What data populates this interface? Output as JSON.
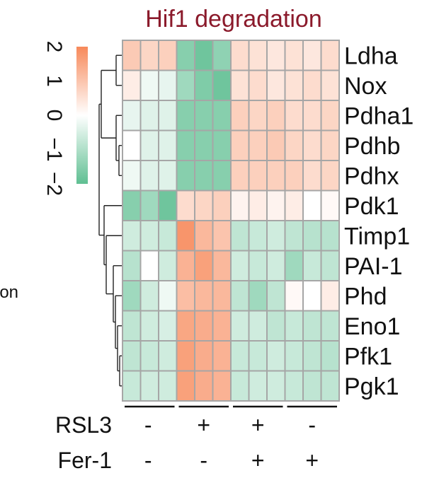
{
  "chart_data": {
    "type": "heatmap",
    "title": "Hif1 degradation",
    "rows": [
      "Ldha",
      "Nox",
      "Pdha1",
      "Pdhb",
      "Pdhx",
      "Pdk1",
      "Timp1",
      "PAI-1",
      "Phd",
      "Eno1",
      "Pfk1",
      "Pgk1"
    ],
    "groups": [
      {
        "label": "RSL3",
        "values": [
          "-",
          "+",
          "+",
          "-"
        ]
      },
      {
        "label": "Fer-1",
        "values": [
          "-",
          "-",
          "+",
          "+"
        ]
      }
    ],
    "replicates_per_group": 3,
    "values": [
      [
        0.9,
        0.7,
        0.8,
        -1.5,
        -1.8,
        -1.4,
        0.6,
        0.5,
        0.4,
        0.5,
        0.4,
        0.6
      ],
      [
        0.3,
        -0.2,
        -0.3,
        -1.2,
        -1.6,
        -1.8,
        0.5,
        0.6,
        0.4,
        0.5,
        0.6,
        0.5
      ],
      [
        -0.3,
        -0.4,
        -0.4,
        -1.5,
        -1.5,
        -1.5,
        0.8,
        0.7,
        0.8,
        0.6,
        0.6,
        0.7
      ],
      [
        0.0,
        -0.4,
        -0.4,
        -1.5,
        -1.5,
        -1.5,
        0.8,
        0.8,
        0.9,
        0.7,
        0.6,
        0.7
      ],
      [
        -0.2,
        -0.4,
        -0.4,
        -1.5,
        -1.5,
        -1.5,
        0.8,
        0.8,
        0.8,
        0.8,
        0.6,
        0.7
      ],
      [
        -1.5,
        -1.2,
        -1.8,
        0.6,
        0.7,
        0.8,
        0.2,
        0.3,
        0.2,
        0.3,
        0.0,
        0.1
      ],
      [
        -0.6,
        -0.6,
        -0.7,
        1.8,
        1.2,
        1.0,
        -0.8,
        -0.7,
        -0.6,
        -0.8,
        -0.9,
        -0.9
      ],
      [
        -0.9,
        0.0,
        -0.6,
        1.3,
        1.6,
        1.2,
        -0.6,
        -0.7,
        -0.6,
        -1.2,
        -0.7,
        -0.8
      ],
      [
        -1.2,
        -0.6,
        -0.2,
        1.1,
        1.2,
        1.2,
        -0.8,
        -1.2,
        -0.8,
        0.1,
        0.0,
        0.3
      ],
      [
        -0.8,
        -0.6,
        -0.5,
        1.5,
        1.4,
        1.3,
        -0.6,
        -0.6,
        -0.8,
        -0.7,
        -0.8,
        -0.8
      ],
      [
        -0.8,
        -0.7,
        -0.6,
        1.6,
        1.4,
        1.3,
        -0.7,
        -0.7,
        -0.6,
        -0.7,
        -0.8,
        -0.9
      ],
      [
        -0.7,
        -0.6,
        -0.6,
        1.6,
        1.4,
        1.3,
        -0.7,
        -0.6,
        -0.6,
        -0.7,
        -0.8,
        -0.8
      ]
    ],
    "color_scale": {
      "min": -2,
      "max": 2,
      "low_color": "#5fbf92",
      "mid_color": "#ffffff",
      "high_color": "#f7895a",
      "ticks": [
        "2",
        "1",
        "0",
        "−1",
        "−2"
      ]
    },
    "grid_color": "#a6a6a6",
    "cut_off_text_left": "ion"
  }
}
